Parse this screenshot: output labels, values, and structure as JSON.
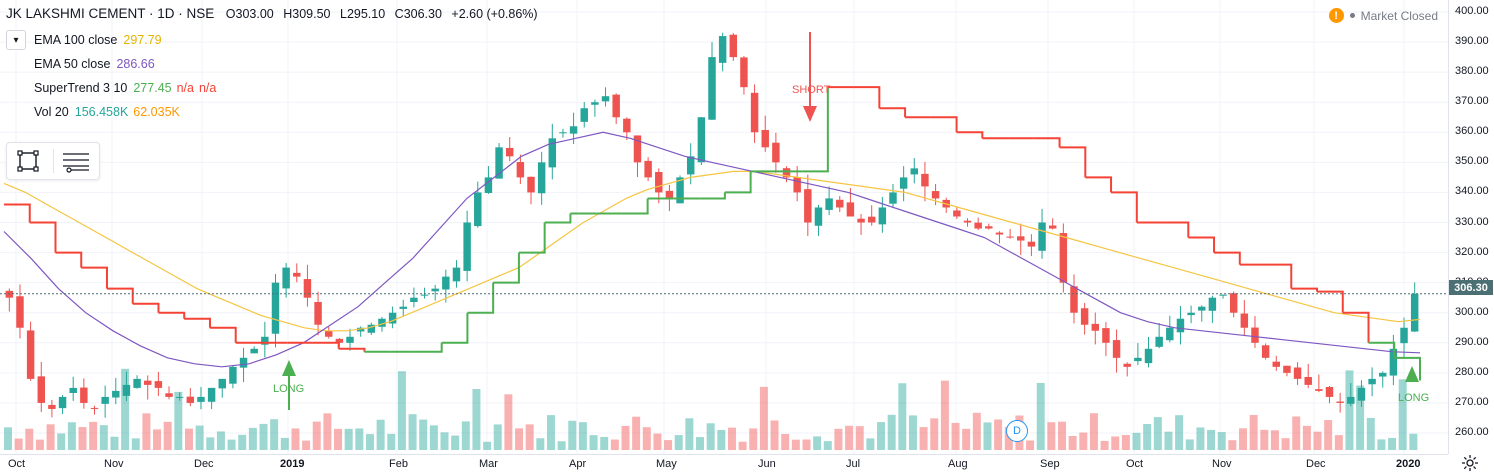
{
  "header": {
    "symbol": "JK LAKSHMI CEMENT · 1D · NSE",
    "open_label": "O",
    "open": "303.00",
    "high_label": "H",
    "high": "309.50",
    "low_label": "L",
    "low": "295.10",
    "close_label": "C",
    "close": "306.30",
    "change": "+2.60 (+0.86%)"
  },
  "indicators": [
    {
      "name": "EMA 100 close",
      "value": "297.79",
      "color": "#f5c542"
    },
    {
      "name": "EMA 50 close",
      "value": "286.66",
      "color": "#7e57c2"
    },
    {
      "name": "SuperTrend 3 10",
      "value": "277.45",
      "value2": "n/a",
      "value3": "n/a",
      "color": "#4caf50",
      "color2": "#f44336"
    },
    {
      "name": "Vol 20",
      "value": "156.458K",
      "value2": "62.035K",
      "color": "#26a69a",
      "color2": "#ff9800"
    }
  ],
  "market_status": {
    "text": "Market Closed",
    "icon": "alert-icon"
  },
  "price_axis": {
    "ticks": [
      "400.00",
      "390.00",
      "380.00",
      "370.00",
      "360.00",
      "350.00",
      "340.00",
      "330.00",
      "320.00",
      "310.00",
      "300.00",
      "290.00",
      "280.00",
      "270.00",
      "260.00"
    ],
    "last_price": "306.30"
  },
  "time_axis": {
    "labels": [
      "Oct",
      "Nov",
      "Dec",
      "2019",
      "Feb",
      "Mar",
      "Apr",
      "May",
      "Jun",
      "Jul",
      "Aug",
      "Sep",
      "Oct",
      "Nov",
      "Dec",
      "2020"
    ]
  },
  "signals": [
    {
      "label": "LONG",
      "color": "#4caf50"
    },
    {
      "label": "SHORT",
      "color": "#ef5350"
    },
    {
      "label": "LONG",
      "color": "#4caf50"
    }
  ],
  "dividend_marker": "D",
  "colors": {
    "up": "#26a69a",
    "down": "#ef5350",
    "ema100": "#f5c542",
    "ema50": "#7e57c2",
    "st_up": "#4caf50",
    "st_down": "#f44336"
  },
  "chart_data": {
    "type": "candlestick",
    "title": "JK LAKSHMI CEMENT · 1D · NSE",
    "ylim": [
      255,
      403
    ],
    "x_range": [
      "2018-10",
      "2020-01"
    ],
    "close": [
      305,
      295,
      278,
      270,
      268,
      272,
      275,
      270,
      268,
      272,
      274,
      276,
      278,
      276,
      275,
      272,
      272,
      270,
      272,
      275,
      278,
      282,
      285,
      288,
      292,
      310,
      315,
      312,
      305,
      296,
      292,
      290,
      292,
      295,
      296,
      298,
      300,
      302,
      305,
      306,
      308,
      312,
      315,
      330,
      340,
      345,
      355,
      352,
      345,
      340,
      350,
      358,
      360,
      362,
      368,
      370,
      372,
      365,
      360,
      350,
      345,
      340,
      338,
      345,
      352,
      365,
      385,
      392,
      385,
      375,
      360,
      355,
      350,
      345,
      340,
      330,
      335,
      338,
      335,
      332,
      330,
      330,
      335,
      340,
      345,
      348,
      342,
      338,
      335,
      332,
      330,
      328,
      328,
      326,
      325,
      324,
      322,
      330,
      328,
      310,
      300,
      296,
      294,
      290,
      285,
      282,
      285,
      288,
      292,
      295,
      298,
      300,
      302,
      305,
      306,
      300,
      295,
      290,
      285,
      282,
      280,
      278,
      276,
      274,
      272,
      270,
      272,
      275,
      278,
      280,
      288,
      295,
      306.3
    ],
    "ema100": [
      343,
      340,
      336,
      332,
      328,
      324,
      320,
      316,
      312,
      308,
      305,
      302,
      299,
      297,
      295,
      294,
      294,
      295,
      297,
      300,
      303,
      306,
      309,
      312,
      315,
      320,
      325,
      330,
      334,
      338,
      341,
      343,
      345,
      346,
      347,
      347,
      346,
      345,
      344,
      343,
      342,
      341,
      340,
      338,
      336,
      334,
      332,
      330,
      328,
      326,
      324,
      322,
      320,
      318,
      316,
      314,
      312,
      310,
      308,
      306,
      304,
      302,
      300,
      299,
      298,
      297,
      297.79
    ],
    "ema50": [
      327,
      318,
      308,
      300,
      294,
      289,
      285,
      283,
      282,
      283,
      286,
      290,
      296,
      302,
      310,
      318,
      328,
      338,
      345,
      352,
      356,
      358,
      360,
      358,
      355,
      352,
      350,
      348,
      346,
      344,
      342,
      340,
      337,
      334,
      331,
      328,
      325,
      320,
      315,
      310,
      305,
      300,
      297,
      295,
      294,
      293,
      292,
      291,
      290,
      289,
      288,
      287,
      286.66
    ],
    "supertrend": [
      336,
      330,
      320,
      315,
      308,
      303,
      300,
      298,
      295,
      290,
      290,
      290,
      290,
      288,
      287,
      287,
      287,
      290,
      300,
      310,
      320,
      330,
      333,
      333,
      333,
      338,
      338,
      338,
      340,
      347,
      347,
      347,
      375,
      375,
      368,
      365,
      365,
      360,
      358,
      358,
      358,
      355,
      345,
      340,
      330,
      330,
      325,
      320,
      316,
      316,
      308,
      307,
      300,
      290,
      285,
      277.45
    ],
    "volume_avg": "62.035K",
    "volume_last": "156.458K"
  }
}
